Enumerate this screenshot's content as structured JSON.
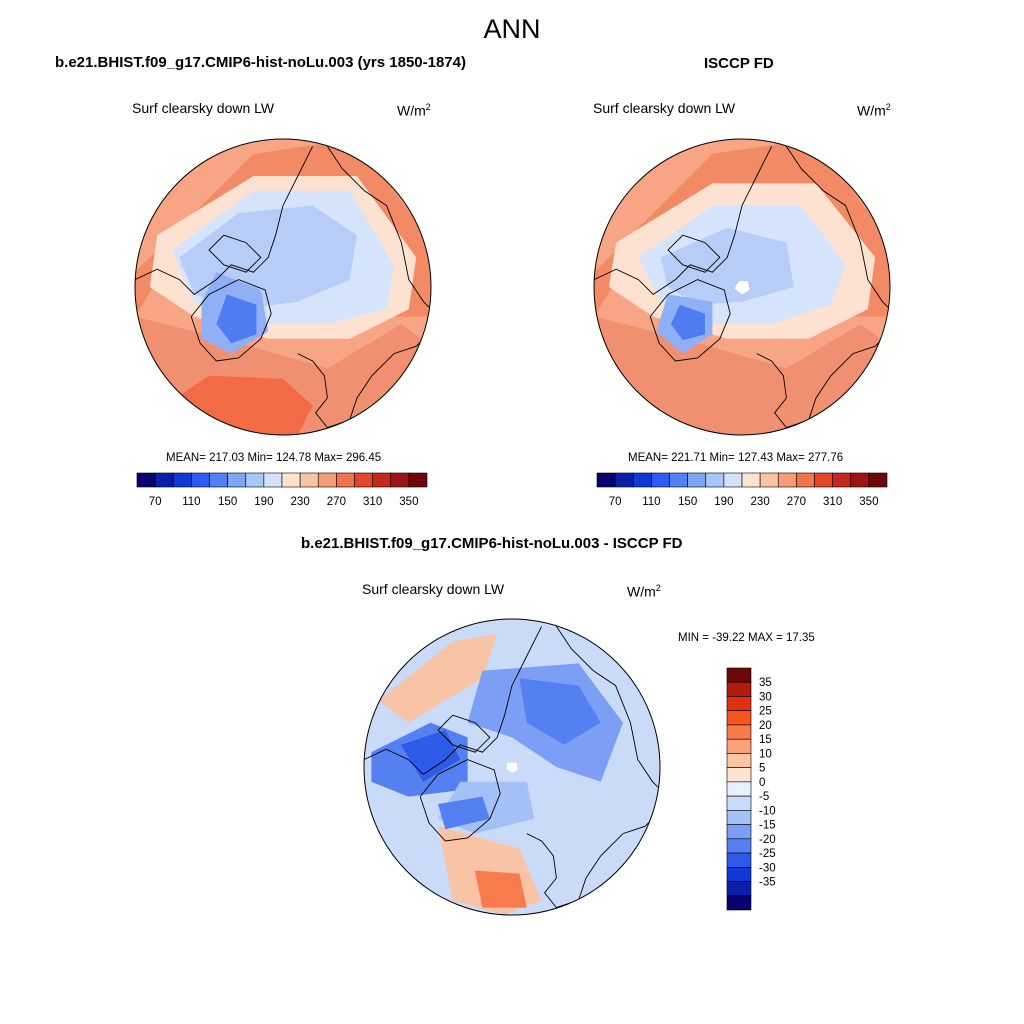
{
  "page_title": "ANN",
  "panels": [
    {
      "title": "b.e21.BHIST.f09_g17.CMIP6-hist-noLu.003 (yrs 1850-1874)",
      "variable": "Surf clearsky down LW",
      "units_base": "W/m",
      "units_exp": "2",
      "stats": "MEAN= 217.03  Min= 124.78  Max= 296.45"
    },
    {
      "title": "ISCCP FD",
      "variable": "Surf clearsky down LW",
      "units_base": "W/m",
      "units_exp": "2",
      "stats": "MEAN= 221.71  Min= 127.43  Max= 277.76"
    },
    {
      "title": "b.e21.BHIST.f09_g17.CMIP6-hist-noLu.003 - ISCCP FD",
      "variable": "Surf clearsky down LW",
      "units_base": "W/m",
      "units_exp": "2",
      "stats": "MIN = -39.22 MAX =  17.35"
    }
  ],
  "colorbar_abs": {
    "colors": [
      "#08006e",
      "#0a1fa8",
      "#1238d6",
      "#2d5af0",
      "#5182f5",
      "#7ea6f7",
      "#a9c6f8",
      "#d4e3fa",
      "#fde3d0",
      "#f9c3a5",
      "#f59d78",
      "#f0744c",
      "#e4472a",
      "#c4281b",
      "#9c1414",
      "#6e0808"
    ],
    "labels": [
      "70",
      "110",
      "150",
      "190",
      "230",
      "270",
      "310",
      "350"
    ]
  },
  "colorbar_diff": {
    "colors": [
      "#6e0808",
      "#b01c10",
      "#e03010",
      "#f8541c",
      "#f77b4d",
      "#f9a17a",
      "#fac4a5",
      "#fde4d0",
      "#e8f0fc",
      "#c9dbf8",
      "#a3c0f7",
      "#7c9ff5",
      "#5580f2",
      "#2d5bea",
      "#1238d6",
      "#0a1fa8",
      "#08006e"
    ],
    "labels": [
      "35",
      "30",
      "25",
      "20",
      "15",
      "10",
      "5",
      "0",
      "-5",
      "-10",
      "-15",
      "-20",
      "-25",
      "-30",
      "-35"
    ]
  },
  "maps": {
    "model": {
      "background": "#f7a584",
      "blobs": [
        {
          "color": "#f28a66",
          "pts": [
            [
              -1,
              -0.1
            ],
            [
              -0.2,
              -0.9
            ],
            [
              0.5,
              -1
            ],
            [
              1,
              -0.3
            ],
            [
              1,
              0.2
            ],
            [
              0.7,
              0.2
            ],
            [
              0,
              -0.55
            ],
            [
              -0.6,
              -0.45
            ],
            [
              -1,
              0.2
            ]
          ]
        },
        {
          "color": "#f09070",
          "pts": [
            [
              -1,
              0.2
            ],
            [
              -0.4,
              0.35
            ],
            [
              0.3,
              0.55
            ],
            [
              0.8,
              0.25
            ],
            [
              1,
              0.4
            ],
            [
              0.8,
              1
            ],
            [
              -0.8,
              1
            ],
            [
              -1,
              0.6
            ]
          ]
        },
        {
          "color": "#f26b45",
          "pts": [
            [
              -0.5,
              0.6
            ],
            [
              0,
              0.62
            ],
            [
              0.2,
              0.8
            ],
            [
              0.1,
              1
            ],
            [
              -0.6,
              1
            ],
            [
              -0.8,
              0.8
            ]
          ]
        },
        {
          "color": "#fde2d2",
          "pts": [
            [
              -0.85,
              -0.35
            ],
            [
              -0.2,
              -0.75
            ],
            [
              0.5,
              -0.75
            ],
            [
              0.9,
              -0.2
            ],
            [
              0.85,
              0.15
            ],
            [
              0.45,
              0.35
            ],
            [
              -0.1,
              0.35
            ],
            [
              -0.6,
              0.2
            ],
            [
              -0.9,
              0.0
            ]
          ]
        },
        {
          "color": "#d6e4fb",
          "pts": [
            [
              -0.75,
              -0.25
            ],
            [
              -0.2,
              -0.65
            ],
            [
              0.45,
              -0.65
            ],
            [
              0.75,
              -0.15
            ],
            [
              0.7,
              0.15
            ],
            [
              0.3,
              0.25
            ],
            [
              -0.2,
              0.25
            ],
            [
              -0.6,
              0.1
            ]
          ]
        },
        {
          "color": "#b7ccf7",
          "pts": [
            [
              -0.7,
              -0.2
            ],
            [
              -0.3,
              -0.5
            ],
            [
              0.2,
              -0.55
            ],
            [
              0.5,
              -0.35
            ],
            [
              0.45,
              -0.05
            ],
            [
              0.1,
              0.1
            ],
            [
              -0.3,
              0.15
            ],
            [
              -0.6,
              0.05
            ]
          ]
        },
        {
          "color": "#8fb0f5",
          "pts": [
            [
              -0.45,
              -0.1
            ],
            [
              -0.15,
              0.02
            ],
            [
              -0.1,
              0.3
            ],
            [
              -0.35,
              0.45
            ],
            [
              -0.55,
              0.35
            ],
            [
              -0.55,
              0.1
            ]
          ]
        },
        {
          "color": "#4f7cf0",
          "pts": [
            [
              -0.38,
              0.05
            ],
            [
              -0.18,
              0.12
            ],
            [
              -0.18,
              0.32
            ],
            [
              -0.35,
              0.38
            ],
            [
              -0.45,
              0.25
            ]
          ]
        }
      ]
    },
    "obs": {
      "background": "#f7a584",
      "blobs": [
        {
          "color": "#f28a66",
          "pts": [
            [
              -1,
              -0.1
            ],
            [
              -0.2,
              -0.9
            ],
            [
              0.5,
              -1
            ],
            [
              1,
              -0.3
            ],
            [
              1,
              0.2
            ],
            [
              0.7,
              0.2
            ],
            [
              0,
              -0.55
            ],
            [
              -0.6,
              -0.45
            ],
            [
              -1,
              0.2
            ]
          ]
        },
        {
          "color": "#f09070",
          "pts": [
            [
              -1,
              0.2
            ],
            [
              -0.4,
              0.35
            ],
            [
              0.3,
              0.55
            ],
            [
              0.8,
              0.25
            ],
            [
              1,
              0.4
            ],
            [
              0.8,
              1
            ],
            [
              -0.8,
              1
            ],
            [
              -1,
              0.6
            ]
          ]
        },
        {
          "color": "#fde2d2",
          "pts": [
            [
              -0.85,
              -0.3
            ],
            [
              -0.2,
              -0.7
            ],
            [
              0.5,
              -0.7
            ],
            [
              0.9,
              -0.2
            ],
            [
              0.85,
              0.15
            ],
            [
              0.45,
              0.35
            ],
            [
              -0.1,
              0.35
            ],
            [
              -0.6,
              0.2
            ],
            [
              -0.9,
              0.0
            ]
          ]
        },
        {
          "color": "#d6e4fb",
          "pts": [
            [
              -0.7,
              -0.2
            ],
            [
              -0.2,
              -0.55
            ],
            [
              0.4,
              -0.55
            ],
            [
              0.7,
              -0.15
            ],
            [
              0.6,
              0.12
            ],
            [
              0.2,
              0.25
            ],
            [
              -0.2,
              0.25
            ],
            [
              -0.55,
              0.1
            ]
          ]
        },
        {
          "color": "#b7ccf7",
          "pts": [
            [
              -0.55,
              -0.2
            ],
            [
              -0.1,
              -0.4
            ],
            [
              0.3,
              -0.3
            ],
            [
              0.35,
              0.0
            ],
            [
              0.0,
              0.1
            ],
            [
              -0.3,
              0.12
            ],
            [
              -0.5,
              0.0
            ]
          ]
        },
        {
          "color": "#8fb0f5",
          "pts": [
            [
              -0.5,
              0.05
            ],
            [
              -0.2,
              0.1
            ],
            [
              -0.2,
              0.32
            ],
            [
              -0.4,
              0.45
            ],
            [
              -0.58,
              0.3
            ]
          ]
        },
        {
          "color": "#4f7cf0",
          "pts": [
            [
              -0.42,
              0.12
            ],
            [
              -0.25,
              0.18
            ],
            [
              -0.25,
              0.32
            ],
            [
              -0.4,
              0.36
            ],
            [
              -0.48,
              0.25
            ]
          ]
        },
        {
          "color": "#ffffff",
          "pts": [
            [
              -0.02,
              -0.04
            ],
            [
              0.04,
              -0.04
            ],
            [
              0.05,
              0.02
            ],
            [
              0.0,
              0.05
            ],
            [
              -0.05,
              0.01
            ]
          ]
        }
      ]
    },
    "diff": {
      "background": "#c9dbf8",
      "blobs": [
        {
          "color": "#f9c3a5",
          "pts": [
            [
              -0.9,
              -0.45
            ],
            [
              -0.4,
              -0.85
            ],
            [
              -0.1,
              -0.9
            ],
            [
              -0.2,
              -0.6
            ],
            [
              -0.7,
              -0.3
            ]
          ]
        },
        {
          "color": "#f9c3a5",
          "pts": [
            [
              -0.5,
              0.4
            ],
            [
              0.05,
              0.55
            ],
            [
              0.2,
              0.9
            ],
            [
              -0.05,
              1
            ],
            [
              -0.4,
              0.9
            ]
          ]
        },
        {
          "color": "#f77b4d",
          "pts": [
            [
              -0.25,
              0.7
            ],
            [
              0.05,
              0.72
            ],
            [
              0.1,
              0.95
            ],
            [
              -0.2,
              0.95
            ]
          ]
        },
        {
          "color": "#7c9ff5",
          "pts": [
            [
              -0.2,
              -0.65
            ],
            [
              0.45,
              -0.7
            ],
            [
              0.75,
              -0.3
            ],
            [
              0.6,
              0.1
            ],
            [
              0.3,
              0.0
            ],
            [
              0.0,
              -0.2
            ],
            [
              -0.3,
              -0.3
            ]
          ]
        },
        {
          "color": "#5580f2",
          "pts": [
            [
              0.05,
              -0.6
            ],
            [
              0.45,
              -0.55
            ],
            [
              0.6,
              -0.3
            ],
            [
              0.35,
              -0.15
            ],
            [
              0.1,
              -0.3
            ]
          ]
        },
        {
          "color": "#5580f2",
          "pts": [
            [
              -0.95,
              -0.1
            ],
            [
              -0.55,
              -0.3
            ],
            [
              -0.3,
              -0.2
            ],
            [
              -0.3,
              0.15
            ],
            [
              -0.7,
              0.2
            ],
            [
              -0.95,
              0.1
            ]
          ]
        },
        {
          "color": "#2d5bea",
          "pts": [
            [
              -0.75,
              -0.15
            ],
            [
              -0.45,
              -0.25
            ],
            [
              -0.35,
              -0.05
            ],
            [
              -0.6,
              0.1
            ]
          ]
        },
        {
          "color": "#a3c0f7",
          "pts": [
            [
              -0.35,
              0.1
            ],
            [
              0.1,
              0.1
            ],
            [
              0.15,
              0.35
            ],
            [
              -0.25,
              0.45
            ],
            [
              -0.5,
              0.35
            ]
          ]
        },
        {
          "color": "#5580f2",
          "pts": [
            [
              -0.5,
              0.25
            ],
            [
              -0.2,
              0.2
            ],
            [
              -0.15,
              0.35
            ],
            [
              -0.45,
              0.42
            ]
          ]
        },
        {
          "color": "#ffffff",
          "pts": [
            [
              -0.03,
              -0.03
            ],
            [
              0.03,
              -0.03
            ],
            [
              0.04,
              0.02
            ],
            [
              0.0,
              0.04
            ],
            [
              -0.04,
              0.01
            ]
          ]
        }
      ]
    }
  },
  "coastlines": [
    [
      [
        -0.62,
        0.2
      ],
      [
        -0.5,
        0.05
      ],
      [
        -0.3,
        -0.05
      ],
      [
        -0.12,
        0.02
      ],
      [
        -0.08,
        0.18
      ],
      [
        -0.15,
        0.35
      ],
      [
        -0.3,
        0.48
      ],
      [
        -0.45,
        0.5
      ],
      [
        -0.56,
        0.38
      ],
      [
        -0.62,
        0.2
      ]
    ],
    [
      [
        -1,
        -0.05
      ],
      [
        -0.85,
        -0.12
      ],
      [
        -0.7,
        -0.05
      ],
      [
        -0.6,
        0.05
      ],
      [
        -0.45,
        -0.05
      ],
      [
        -0.35,
        -0.15
      ],
      [
        -0.2,
        -0.1
      ],
      [
        -0.1,
        -0.2
      ],
      [
        -0.05,
        -0.35
      ],
      [
        0.0,
        -0.55
      ],
      [
        0.1,
        -0.75
      ],
      [
        0.2,
        -0.95
      ]
    ],
    [
      [
        0.1,
        0.45
      ],
      [
        0.2,
        0.5
      ],
      [
        0.28,
        0.6
      ],
      [
        0.3,
        0.75
      ],
      [
        0.22,
        0.85
      ],
      [
        0.3,
        0.95
      ],
      [
        0.45,
        0.9
      ],
      [
        0.5,
        0.75
      ],
      [
        0.6,
        0.6
      ],
      [
        0.75,
        0.45
      ],
      [
        0.9,
        0.4
      ],
      [
        1,
        0.3
      ]
    ],
    [
      [
        0.3,
        -0.95
      ],
      [
        0.4,
        -0.8
      ],
      [
        0.55,
        -0.65
      ],
      [
        0.7,
        -0.55
      ],
      [
        0.8,
        -0.3
      ],
      [
        0.85,
        -0.05
      ],
      [
        0.95,
        0.1
      ],
      [
        1,
        0.15
      ]
    ],
    [
      [
        -0.4,
        -0.35
      ],
      [
        -0.25,
        -0.3
      ],
      [
        -0.15,
        -0.2
      ],
      [
        -0.25,
        -0.1
      ],
      [
        -0.4,
        -0.15
      ],
      [
        -0.5,
        -0.25
      ],
      [
        -0.4,
        -0.35
      ]
    ]
  ]
}
